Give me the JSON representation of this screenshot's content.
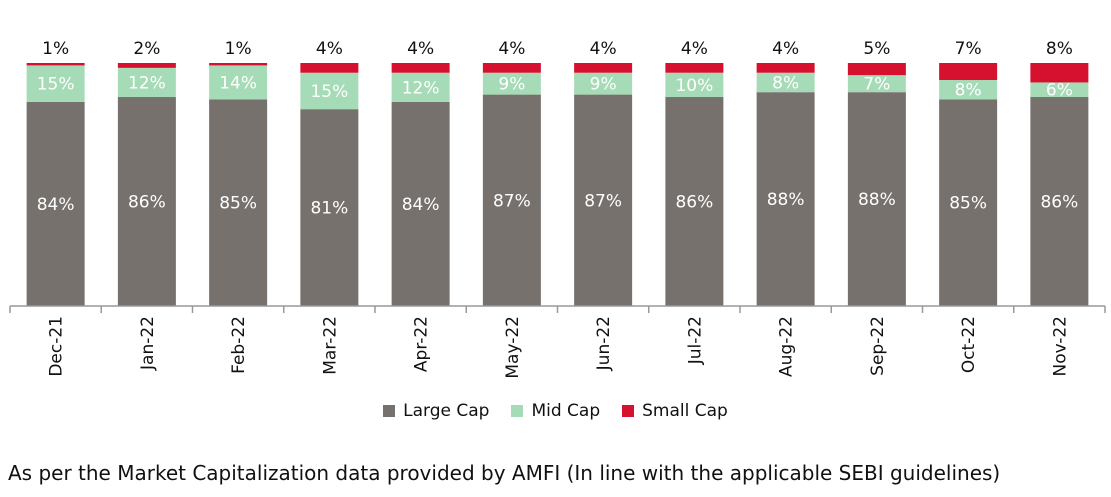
{
  "chart_data": {
    "type": "bar",
    "stacked": true,
    "percent": true,
    "categories": [
      "Dec-21",
      "Jan-22",
      "Feb-22",
      "Mar-22",
      "Apr-22",
      "May-22",
      "Jun-22",
      "Jul-22",
      "Aug-22",
      "Sep-22",
      "Oct-22",
      "Nov-22"
    ],
    "series": [
      {
        "name": "Large Cap",
        "color": "#76716d",
        "values": [
          84,
          86,
          85,
          81,
          84,
          87,
          87,
          86,
          88,
          88,
          85,
          86
        ]
      },
      {
        "name": "Mid Cap",
        "color": "#a6dbb7",
        "values": [
          15,
          12,
          14,
          15,
          12,
          9,
          9,
          10,
          8,
          7,
          8,
          6
        ]
      },
      {
        "name": "Small Cap",
        "color": "#d6102f",
        "values": [
          1,
          2,
          1,
          4,
          4,
          4,
          4,
          4,
          4,
          5,
          7,
          8
        ]
      }
    ],
    "ylim": [
      0,
      100
    ],
    "legend_position": "bottom",
    "grid": false
  },
  "footnote": "As per the Market Capitalization data provided by AMFI (In line with the applicable SEBI guidelines)"
}
